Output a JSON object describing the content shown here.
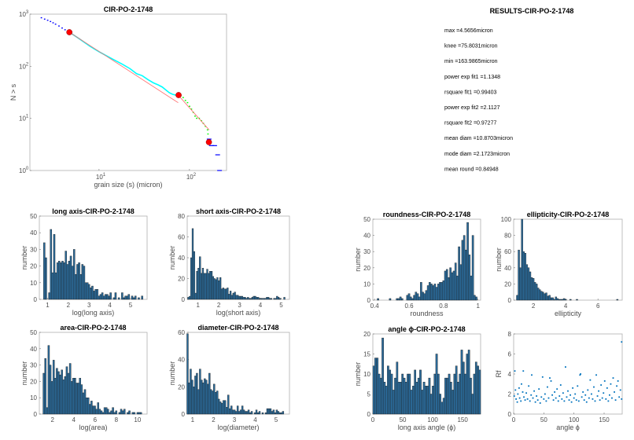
{
  "colors": {
    "bar_fill": "#2b6c9c",
    "bar_edge": "#1a1a1a",
    "scatter": "#0072bd",
    "fit": "#ff6666",
    "marker": "#ff0000",
    "cyan": "#00ffff",
    "green": "#00ff00",
    "blue": "#0000ff"
  },
  "chart_data": [
    {
      "id": "ns",
      "type": "line",
      "title": "CIR-PO-2-1748",
      "xlabel": "grain size (s) (micron)",
      "ylabel": "N > s",
      "xscale": "log",
      "yscale": "log",
      "xlim": [
        1.72,
        257
      ],
      "ylim": [
        1,
        1000
      ],
      "xticks": [
        {
          "v": 10,
          "label": "10^1"
        },
        {
          "v": 100,
          "label": "10^2"
        }
      ],
      "yticks": [
        {
          "v": 1,
          "label": "10^0"
        },
        {
          "v": 10,
          "label": "10^1"
        },
        {
          "v": 100,
          "label": "10^2"
        },
        {
          "v": 1000,
          "label": "10^3"
        }
      ],
      "series": [
        {
          "name": "data-small",
          "style": "dots",
          "color": "blue",
          "points": [
            [
              2.3,
              850
            ],
            [
              2.5,
              800
            ],
            [
              2.7,
              760
            ],
            [
              2.9,
              720
            ],
            [
              3.1,
              680
            ],
            [
              3.3,
              640
            ],
            [
              3.6,
              590
            ],
            [
              3.9,
              540
            ],
            [
              4.2,
              500
            ],
            [
              4.5,
              470
            ]
          ]
        },
        {
          "name": "data-fit1",
          "style": "line",
          "color": "cyan",
          "points": [
            [
              4.7,
              450
            ],
            [
              6,
              340
            ],
            [
              8,
              240
            ],
            [
              10,
              190
            ],
            [
              12,
              160
            ],
            [
              15,
              130
            ],
            [
              18,
              110
            ],
            [
              22,
              90
            ],
            [
              26,
              72
            ],
            [
              30,
              66
            ],
            [
              35,
              55
            ],
            [
              40,
              48
            ],
            [
              45,
              44
            ],
            [
              50,
              40
            ],
            [
              55,
              35
            ],
            [
              60,
              31
            ],
            [
              65,
              29
            ],
            [
              70,
              28
            ],
            [
              75.8,
              28
            ]
          ]
        },
        {
          "name": "data-fit2",
          "style": "dots",
          "color": "green",
          "points": [
            [
              75.8,
              28
            ],
            [
              80,
              27
            ],
            [
              85,
              25
            ],
            [
              90,
              22
            ],
            [
              95,
              20
            ],
            [
              100,
              17
            ],
            [
              105,
              15
            ],
            [
              110,
              13
            ],
            [
              115,
              11
            ],
            [
              120,
              10
            ],
            [
              128,
              10
            ],
            [
              135,
              9
            ],
            [
              142,
              8
            ],
            [
              150,
              7
            ],
            [
              158,
              6
            ],
            [
              160,
              5
            ]
          ]
        },
        {
          "name": "data-large",
          "style": "dash",
          "color": "blue",
          "points": [
            [
              165,
              4
            ],
            [
              175,
              3
            ],
            [
              190,
              3
            ],
            [
              205,
              2
            ],
            [
              215,
              1
            ]
          ]
        },
        {
          "name": "fit1",
          "style": "line",
          "color": "fit",
          "points": [
            [
              4.7,
              450
            ],
            [
              75,
              20
            ]
          ]
        },
        {
          "name": "fit2",
          "style": "line",
          "color": "fit",
          "points": [
            [
              75,
              28
            ],
            [
              165,
              6
            ]
          ]
        }
      ],
      "markers": [
        [
          4.7,
          450
        ],
        [
          75.8,
          28
        ],
        [
          164,
          3.5
        ]
      ]
    },
    {
      "id": "long",
      "type": "bar",
      "title": "long axis-CIR-PO-2-1748",
      "xlabel": "log(long axis)",
      "ylabel": "number",
      "xlim": [
        0.6,
        5.8
      ],
      "ylim": [
        0,
        50
      ],
      "xticks": [
        1,
        2,
        3,
        4,
        5
      ],
      "yticks": [
        0,
        10,
        20,
        30,
        40,
        50
      ],
      "bin_start": 0.8,
      "bin_width": 0.08,
      "values": [
        34,
        25,
        0,
        4,
        42,
        16,
        39,
        16,
        22,
        23,
        22,
        23,
        22,
        29,
        21,
        23,
        26,
        20,
        30,
        15,
        21,
        22,
        15,
        21,
        20,
        10,
        10,
        9,
        7,
        8,
        5,
        6,
        6,
        2,
        3,
        4,
        2,
        3,
        3,
        2,
        4,
        0,
        1,
        4,
        0,
        1,
        0,
        4,
        1,
        2,
        2,
        3,
        0,
        2,
        1,
        2,
        0,
        1,
        0,
        2
      ]
    },
    {
      "id": "short",
      "type": "bar",
      "title": "short axis-CIR-PO-2-1748",
      "xlabel": "log(short axis)",
      "ylabel": "number",
      "xlim": [
        0.48,
        5.4
      ],
      "ylim": [
        0,
        80
      ],
      "xticks": [
        1,
        2,
        3,
        4,
        5
      ],
      "yticks": [
        0,
        20,
        40,
        60,
        80
      ],
      "bin_start": 0.5,
      "bin_width": 0.07,
      "values": [
        2,
        3,
        40,
        68,
        46,
        6,
        27,
        30,
        41,
        25,
        30,
        25,
        25,
        29,
        25,
        27,
        27,
        22,
        20,
        19,
        21,
        18,
        21,
        10,
        11,
        10,
        10,
        11,
        5,
        8,
        4,
        6,
        7,
        4,
        4,
        3,
        3,
        3,
        2,
        2,
        1,
        2,
        1,
        1,
        2,
        3,
        3,
        2,
        2,
        1,
        1,
        1,
        1,
        1,
        2,
        2,
        1,
        1,
        0,
        1,
        1,
        3,
        2,
        1,
        0,
        0,
        2
      ]
    },
    {
      "id": "area",
      "type": "bar",
      "title": "area-CIR-PO-2-1748",
      "xlabel": "log(area)",
      "ylabel": "number",
      "xlim": [
        0.76,
        10.9
      ],
      "ylim": [
        0,
        50
      ],
      "xticks": [
        2,
        4,
        6,
        8,
        10
      ],
      "yticks": [
        0,
        10,
        20,
        30,
        40,
        50
      ],
      "bin_start": 1.1,
      "bin_width": 0.155,
      "values": [
        25,
        34,
        4,
        42,
        30,
        20,
        33,
        22,
        28,
        26,
        24,
        27,
        21,
        23,
        29,
        25,
        31,
        20,
        22,
        22,
        19,
        19,
        22,
        18,
        13,
        15,
        10,
        10,
        6,
        8,
        5,
        5,
        3,
        7,
        3,
        2,
        1,
        4,
        4,
        3,
        1,
        2,
        4,
        1,
        2,
        0,
        1,
        3,
        2,
        3,
        0,
        1,
        2,
        0,
        1,
        1,
        0,
        1,
        1,
        1
      ]
    },
    {
      "id": "diam",
      "type": "bar",
      "title": "diameter-CIR-PO-2-1748",
      "xlabel": "log(diameter)",
      "ylabel": "number",
      "xlim": [
        0.74,
        5.64
      ],
      "ylim": [
        0,
        60
      ],
      "xticks": [
        1,
        2,
        3,
        4,
        5
      ],
      "yticks": [
        0,
        20,
        40,
        60
      ],
      "bin_start": 0.72,
      "bin_width": 0.075,
      "values": [
        59,
        23,
        33,
        25,
        20,
        28,
        30,
        18,
        33,
        25,
        23,
        26,
        25,
        22,
        30,
        18,
        17,
        22,
        16,
        17,
        11,
        9,
        8,
        10,
        10,
        5,
        14,
        4,
        6,
        3,
        3,
        2,
        6,
        2,
        3,
        6,
        3,
        2,
        2,
        3,
        1,
        2,
        0,
        1,
        3,
        1,
        2,
        0,
        1,
        0,
        1,
        4,
        4,
        4,
        2,
        3,
        1,
        3,
        2,
        1,
        1,
        2
      ]
    },
    {
      "id": "round",
      "type": "bar",
      "title": "roundness-CIR-PO-2-1748",
      "xlabel": "roundness",
      "ylabel": "number",
      "xlim": [
        0.39,
        1.015
      ],
      "ylim": [
        0,
        50
      ],
      "xticks": [
        0.4,
        0.6,
        0.8,
        1
      ],
      "yticks": [
        0,
        10,
        20,
        30,
        40,
        50
      ],
      "bin_start": 0.415,
      "bin_width": 0.01,
      "values": [
        1,
        0,
        0,
        0,
        0,
        0,
        0,
        1,
        0,
        0,
        0,
        1,
        1,
        2,
        1,
        0,
        0,
        3,
        4,
        2,
        1,
        3,
        5,
        4,
        2,
        11,
        5,
        4,
        6,
        9,
        11,
        10,
        9,
        10,
        8,
        10,
        11,
        11,
        12,
        18,
        19,
        14,
        20,
        17,
        18,
        23,
        15,
        33,
        22,
        37,
        40,
        31,
        48,
        28,
        15,
        40,
        3,
        2
      ]
    },
    {
      "id": "ellip",
      "type": "bar",
      "title": "ellipticity-CIR-PO-2-1748",
      "xlabel": "ellipticity",
      "ylabel": "number",
      "xlim": [
        0.78,
        7.5
      ],
      "ylim": [
        0,
        100
      ],
      "xticks": [
        2,
        4,
        6
      ],
      "yticks": [
        0,
        20,
        40,
        60,
        80,
        100
      ],
      "bin_start": 0.95,
      "bin_width": 0.1,
      "values": [
        6,
        62,
        40,
        100,
        60,
        58,
        44,
        40,
        35,
        28,
        27,
        22,
        20,
        15,
        13,
        11,
        10,
        8,
        9,
        5,
        6,
        3,
        3,
        1,
        4,
        2,
        1,
        1,
        1,
        2,
        1,
        0,
        0,
        1,
        0,
        0,
        0,
        1,
        0,
        0,
        0,
        0,
        0,
        0,
        0,
        0,
        0,
        0,
        0,
        0,
        0,
        0,
        0,
        0,
        0,
        0,
        0,
        0,
        0,
        0,
        0,
        0,
        1
      ]
    },
    {
      "id": "angle",
      "type": "bar",
      "title": "angle ϕ-CIR-PO-2-1748",
      "xlabel": "long axis angle (ϕ)",
      "ylabel": "number",
      "xlim": [
        0,
        180
      ],
      "ylim": [
        0,
        20
      ],
      "xticks": [
        0,
        50,
        100,
        150
      ],
      "yticks": [
        0,
        5,
        10,
        15,
        20
      ],
      "bin_start": 0,
      "bin_width": 3,
      "values": [
        12,
        14,
        14,
        10,
        9,
        19,
        8,
        7,
        12,
        11,
        10,
        6,
        9,
        13,
        8,
        8,
        10,
        9,
        8,
        10,
        10,
        6,
        7,
        11,
        8,
        9,
        11,
        6,
        8,
        7,
        7,
        9,
        5,
        7,
        10,
        15,
        10,
        5,
        3,
        4,
        9,
        9,
        10,
        8,
        6,
        10,
        12,
        8,
        10,
        16,
        13,
        10,
        15,
        16,
        9,
        5,
        10,
        13,
        12,
        11
      ]
    },
    {
      "id": "rf",
      "type": "scatter",
      "title": "",
      "xlabel": "angle ϕ",
      "ylabel": "Rf",
      "xlim": [
        0,
        180
      ],
      "ylim": [
        0,
        8
      ],
      "xticks": [
        0,
        50,
        100,
        150
      ],
      "yticks": [
        0,
        2,
        4,
        6,
        8
      ],
      "points": [
        [
          1,
          1.8
        ],
        [
          2,
          4.3
        ],
        [
          3,
          2.4
        ],
        [
          4,
          1.5
        ],
        [
          6,
          1.2
        ],
        [
          7,
          2.0
        ],
        [
          9,
          2.6
        ],
        [
          10,
          1.6
        ],
        [
          12,
          1.3
        ],
        [
          13,
          3.0
        ],
        [
          15,
          2.2
        ],
        [
          16,
          4.3
        ],
        [
          17,
          1.7
        ],
        [
          19,
          1.4
        ],
        [
          21,
          2.1
        ],
        [
          23,
          1.5
        ],
        [
          25,
          2.8
        ],
        [
          27,
          1.3
        ],
        [
          29,
          1.9
        ],
        [
          30,
          3.9
        ],
        [
          32,
          1.6
        ],
        [
          34,
          2.3
        ],
        [
          36,
          1.2
        ],
        [
          38,
          1.8
        ],
        [
          40,
          1.4
        ],
        [
          42,
          2.5
        ],
        [
          44,
          1.1
        ],
        [
          46,
          1.7
        ],
        [
          48,
          3.7
        ],
        [
          50,
          1.5
        ],
        [
          52,
          2.0
        ],
        [
          54,
          1.3
        ],
        [
          56,
          2.7
        ],
        [
          58,
          1.6
        ],
        [
          60,
          3.6
        ],
        [
          62,
          3.3
        ],
        [
          64,
          1.9
        ],
        [
          66,
          1.4
        ],
        [
          68,
          2.2
        ],
        [
          70,
          1.6
        ],
        [
          72,
          2.5
        ],
        [
          74,
          1.3
        ],
        [
          76,
          1.8
        ],
        [
          78,
          2.9
        ],
        [
          80,
          1.5
        ],
        [
          82,
          2.1
        ],
        [
          84,
          1.3
        ],
        [
          86,
          4.7
        ],
        [
          88,
          1.7
        ],
        [
          90,
          2.3
        ],
        [
          92,
          1.4
        ],
        [
          94,
          1.9
        ],
        [
          96,
          1.2
        ],
        [
          98,
          2.6
        ],
        [
          100,
          1.6
        ],
        [
          102,
          2.0
        ],
        [
          104,
          1.4
        ],
        [
          106,
          2.8
        ],
        [
          108,
          1.3
        ],
        [
          110,
          3.9
        ],
        [
          111,
          4.0
        ],
        [
          113,
          1.7
        ],
        [
          115,
          2.2
        ],
        [
          117,
          1.4
        ],
        [
          119,
          1.9
        ],
        [
          121,
          1.2
        ],
        [
          123,
          2.4
        ],
        [
          125,
          1.6
        ],
        [
          127,
          3.4
        ],
        [
          129,
          2.0
        ],
        [
          131,
          1.5
        ],
        [
          133,
          2.7
        ],
        [
          135,
          1.3
        ],
        [
          137,
          3.9
        ],
        [
          139,
          1.8
        ],
        [
          141,
          2.3
        ],
        [
          143,
          1.4
        ],
        [
          145,
          2.9
        ],
        [
          147,
          1.6
        ],
        [
          149,
          2.1
        ],
        [
          151,
          3.3
        ],
        [
          153,
          1.5
        ],
        [
          155,
          2.6
        ],
        [
          157,
          1.3
        ],
        [
          159,
          1.9
        ],
        [
          161,
          3.0
        ],
        [
          163,
          1.6
        ],
        [
          165,
          3.6
        ],
        [
          167,
          2.2
        ],
        [
          169,
          1.4
        ],
        [
          171,
          2.8
        ],
        [
          173,
          3.3
        ],
        [
          175,
          1.7
        ],
        [
          177,
          2.4
        ],
        [
          179,
          7.2
        ],
        [
          179,
          1.5
        ]
      ]
    }
  ],
  "results": {
    "title": "RESULTS-CIR-PO-2-1748",
    "lines": [
      "max =4.5656micron",
      "knee =75.8031micron",
      "min =163.9865micron",
      "power exp fit1 =1.1348",
      "rsquare fit1 =0.99403",
      "power exp fit2 =2.1127",
      "rsquare fit2 =0.97277",
      "mean diam =10.8703micron",
      "mode diam =2.1723micron",
      "mean round =0.84948"
    ]
  }
}
